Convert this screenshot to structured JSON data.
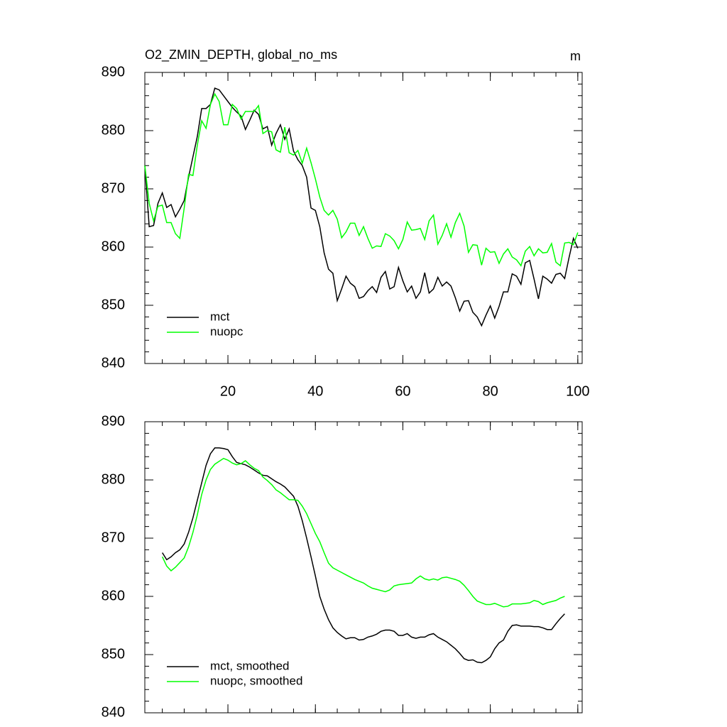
{
  "chart_data": [
    {
      "type": "line",
      "title": "O2_ZMIN_DEPTH, global_no_ms",
      "units": "m",
      "x": [
        1,
        2,
        3,
        4,
        5,
        6,
        7,
        8,
        9,
        10,
        11,
        12,
        13,
        14,
        15,
        16,
        17,
        18,
        19,
        20,
        21,
        22,
        23,
        24,
        25,
        26,
        27,
        28,
        29,
        30,
        31,
        32,
        33,
        34,
        35,
        36,
        37,
        38,
        39,
        40,
        41,
        42,
        43,
        44,
        45,
        46,
        47,
        48,
        49,
        50,
        51,
        52,
        53,
        54,
        55,
        56,
        57,
        58,
        59,
        60,
        61,
        62,
        63,
        64,
        65,
        66,
        67,
        68,
        69,
        70,
        71,
        72,
        73,
        74,
        75,
        76,
        77,
        78,
        79,
        80,
        81,
        82,
        83,
        84,
        85,
        86,
        87,
        88,
        89,
        90,
        91,
        92,
        93,
        94,
        95,
        96,
        97,
        98,
        99,
        100
      ],
      "series": [
        {
          "name": "mct",
          "color": "#000000",
          "values": [
            874,
            863.5,
            863.7,
            867.5,
            869.3,
            866.8,
            867.3,
            865.2,
            866.5,
            868,
            872,
            875.5,
            879,
            883.8,
            883.8,
            884.5,
            887.3,
            887,
            886,
            885,
            884,
            883.2,
            882.5,
            880.2,
            881.8,
            883.5,
            882.8,
            880.3,
            880.7,
            877.5,
            879.5,
            881,
            878.5,
            880.3,
            876.5,
            875,
            874,
            872,
            866.7,
            866.3,
            863.5,
            859,
            856.2,
            855.5,
            850.8,
            852.8,
            855,
            853.8,
            853.2,
            851.2,
            851.5,
            852.5,
            853.2,
            852.2,
            854.8,
            855.8,
            852.8,
            853.2,
            856.5,
            854.2,
            852.3,
            853.3,
            851.2,
            852.3,
            855.6,
            852.1,
            852.8,
            854.8,
            853.3,
            854,
            853.3,
            851.3,
            849,
            850.7,
            850.8,
            848.8,
            848,
            846.5,
            848.3,
            849.9,
            847.8,
            849.8,
            852.3,
            852.3,
            855.4,
            855,
            853.6,
            857.3,
            857.7,
            854.5,
            851.1,
            855,
            854.5,
            853.8,
            855.3,
            855.5,
            854.6,
            858.2,
            861.5,
            859.8
          ]
        },
        {
          "name": "nuopc",
          "color": "#00ff00",
          "values": [
            874,
            867.5,
            864.5,
            867,
            867.2,
            864.2,
            864.2,
            862.3,
            861.5,
            866.7,
            872.5,
            872.3,
            877.5,
            881.7,
            880.4,
            884.5,
            886.3,
            885,
            881,
            881,
            884.5,
            883.8,
            882,
            883.3,
            883.3,
            883.3,
            884.3,
            879.5,
            880,
            879.8,
            876.7,
            876.3,
            880.6,
            876.2,
            875.8,
            876.6,
            874.4,
            877,
            874.5,
            871.7,
            868.6,
            866.3,
            865.5,
            866.3,
            864.8,
            861.6,
            862.6,
            864.1,
            864.1,
            862,
            863.5,
            861.5,
            859.8,
            860.2,
            860.1,
            862.3,
            861.9,
            861.1,
            859.7,
            861.3,
            864.3,
            862.9,
            863,
            863.2,
            861.3,
            864.5,
            865.5,
            860.5,
            862,
            864,
            861.7,
            864.2,
            865.8,
            863.6,
            859.1,
            860.4,
            860.3,
            856.9,
            859.8,
            859.1,
            859.2,
            857.2,
            858.8,
            859.7,
            858.3,
            857.8,
            856.8,
            859.3,
            860.1,
            858.5,
            859.7,
            859,
            859.1,
            860.6,
            857.4,
            856.8,
            860.7,
            860.8,
            860.4,
            862.5
          ]
        }
      ],
      "xlim": [
        1,
        101
      ],
      "xticks": [
        20,
        40,
        60,
        80,
        100
      ],
      "xtick_labels": true,
      "ylim": [
        840,
        890
      ],
      "yticks": [
        840,
        850,
        860,
        870,
        880,
        890
      ],
      "legend": "lower left"
    },
    {
      "type": "line",
      "x": [
        5,
        6,
        7,
        8,
        9,
        10,
        11,
        12,
        13,
        14,
        15,
        16,
        17,
        18,
        19,
        20,
        21,
        22,
        23,
        24,
        25,
        26,
        27,
        28,
        29,
        30,
        31,
        32,
        33,
        34,
        35,
        36,
        37,
        38,
        39,
        40,
        41,
        42,
        43,
        44,
        45,
        46,
        47,
        48,
        49,
        50,
        51,
        52,
        53,
        54,
        55,
        56,
        57,
        58,
        59,
        60,
        61,
        62,
        63,
        64,
        65,
        66,
        67,
        68,
        69,
        70,
        71,
        72,
        73,
        74,
        75,
        76,
        77,
        78,
        79,
        80,
        81,
        82,
        83,
        84,
        85,
        86,
        87,
        88,
        89,
        90,
        91,
        92,
        93,
        94,
        95,
        96,
        97
      ],
      "series": [
        {
          "name": "mct, smoothed",
          "color": "#000000",
          "values": [
            867.5,
            866.3,
            866.8,
            867.5,
            868,
            869,
            871,
            873.5,
            876.5,
            879.5,
            882.5,
            884.5,
            885.5,
            885.5,
            885.4,
            885.2,
            884,
            883,
            882.8,
            882.6,
            882.2,
            881.7,
            881.2,
            880.8,
            880.7,
            880.2,
            879.7,
            879.3,
            878.8,
            878,
            877.2,
            875.5,
            873,
            870,
            866.8,
            863.5,
            860,
            857.8,
            856,
            854.6,
            853.8,
            853.2,
            852.7,
            852.9,
            852.9,
            852.5,
            852.6,
            853,
            853.2,
            853.5,
            854,
            854.2,
            854.2,
            854,
            853.3,
            853.3,
            853.6,
            853,
            852.8,
            853,
            853,
            853.4,
            853.6,
            853,
            852.6,
            852.2,
            851.6,
            851,
            850.2,
            849.3,
            849,
            849.1,
            848.7,
            848.6,
            849,
            849.6,
            851,
            852,
            852.5,
            854,
            855,
            855.1,
            854.9,
            854.9,
            854.9,
            854.8,
            854.8,
            854.6,
            854.3,
            854.3,
            855.3,
            856.2,
            857
          ]
        },
        {
          "name": "nuopc, smoothed",
          "color": "#00ff00",
          "values": [
            866.8,
            865.2,
            864.4,
            865,
            865.8,
            866.6,
            868.5,
            871,
            874,
            877.5,
            880,
            881.8,
            882.7,
            883.2,
            883.7,
            883.4,
            882.9,
            882.6,
            882.8,
            883.3,
            882.6,
            882,
            881.6,
            880.5,
            879.9,
            879.2,
            878.3,
            877.8,
            877.2,
            876.6,
            876.6,
            876.5,
            875.5,
            874.2,
            872.5,
            870.8,
            869.4,
            867.5,
            865.7,
            864.9,
            864.5,
            864.1,
            863.7,
            863.3,
            862.9,
            862.6,
            862.3,
            861.8,
            861.4,
            861.2,
            861,
            860.8,
            861.1,
            861.8,
            862,
            862.1,
            862.2,
            862.3,
            863,
            863.5,
            863,
            862.8,
            863,
            862.8,
            863.2,
            863.3,
            863.1,
            862.9,
            862.6,
            861.9,
            861,
            860,
            859.2,
            858.9,
            858.6,
            858.6,
            858.8,
            858.5,
            858.2,
            858.3,
            858.7,
            858.7,
            858.7,
            858.8,
            858.9,
            859.3,
            859.1,
            858.6,
            858.9,
            859.1,
            859.3,
            859.7,
            860
          ]
        }
      ],
      "xlim": [
        1,
        101
      ],
      "xticks": [
        20,
        40,
        60,
        80,
        100
      ],
      "xtick_labels": false,
      "ylim": [
        840,
        890
      ],
      "yticks": [
        840,
        850,
        860,
        870,
        880,
        890
      ],
      "legend": "lower left"
    }
  ]
}
